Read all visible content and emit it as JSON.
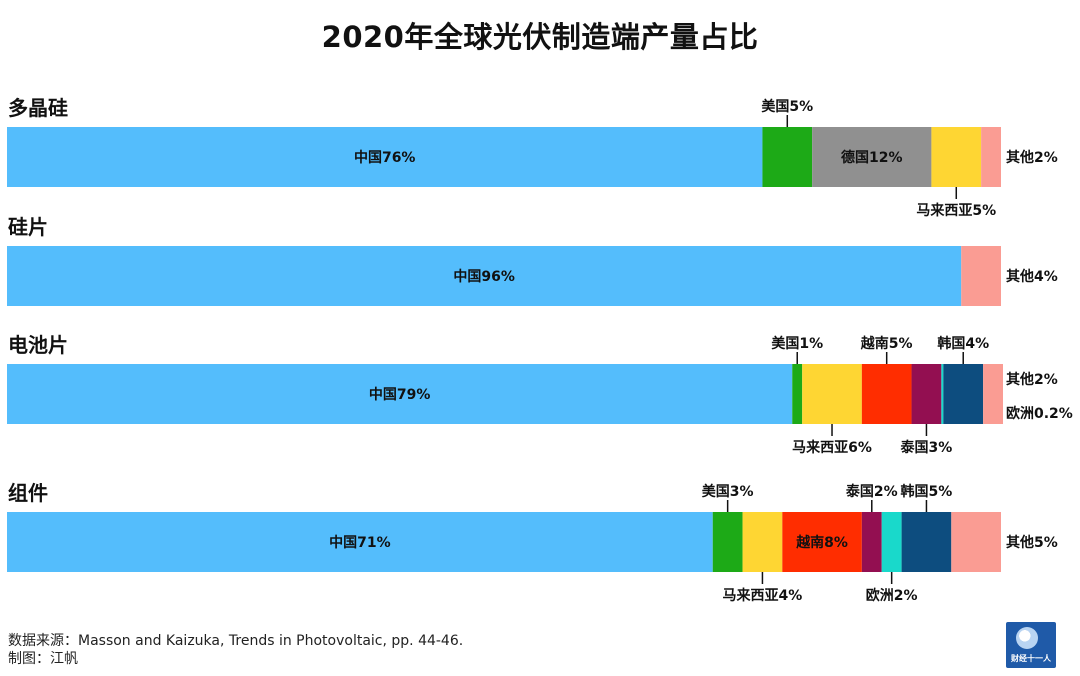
{
  "chart_data": {
    "type": "bar",
    "title": "2020年全球光伏制造端产量占比",
    "stacked": true,
    "orientation": "horizontal",
    "xlim": [
      0,
      100
    ],
    "unit": "%",
    "rows": [
      {
        "name": "多晶硅",
        "segments": [
          {
            "label": "中国76%",
            "value": 76,
            "color": "#54BDFC"
          },
          {
            "label": "美国5%",
            "value": 5,
            "color": "#1DAA17"
          },
          {
            "label": "德国12%",
            "value": 12,
            "color": "#909090"
          },
          {
            "label": "马来西亚5%",
            "value": 5,
            "color": "#FED633"
          },
          {
            "label": "其他2%",
            "value": 2,
            "color": "#FA9C93"
          }
        ]
      },
      {
        "name": "硅片",
        "segments": [
          {
            "label": "中国96%",
            "value": 96,
            "color": "#54BDFC"
          },
          {
            "label": "其他4%",
            "value": 4,
            "color": "#FA9C93"
          }
        ]
      },
      {
        "name": "电池片",
        "segments": [
          {
            "label": "中国79%",
            "value": 79,
            "color": "#54BDFC"
          },
          {
            "label": "美国1%",
            "value": 1,
            "color": "#1DAA17"
          },
          {
            "label": "马来西亚6%",
            "value": 6,
            "color": "#FED633"
          },
          {
            "label": "越南5%",
            "value": 5,
            "color": "#FF2D00"
          },
          {
            "label": "泰国3%",
            "value": 3,
            "color": "#930F51"
          },
          {
            "label": "欧洲0.2%",
            "value": 0.2,
            "color": "#19D9CB"
          },
          {
            "label": "韩国4%",
            "value": 4,
            "color": "#0D4D7F"
          },
          {
            "label": "其他2%",
            "value": 2,
            "color": "#FA9C93"
          }
        ]
      },
      {
        "name": "组件",
        "segments": [
          {
            "label": "中国71%",
            "value": 71,
            "color": "#54BDFC"
          },
          {
            "label": "美国3%",
            "value": 3,
            "color": "#1DAA17"
          },
          {
            "label": "马来西亚4%",
            "value": 4,
            "color": "#FED633"
          },
          {
            "label": "越南8%",
            "value": 8,
            "color": "#FF2D00"
          },
          {
            "label": "泰国2%",
            "value": 2,
            "color": "#930F51"
          },
          {
            "label": "欧洲2%",
            "value": 2,
            "color": "#19D9CB"
          },
          {
            "label": "韩国5%",
            "value": 5,
            "color": "#0D4D7F"
          },
          {
            "label": "其他5%",
            "value": 5,
            "color": "#FA9C93"
          }
        ]
      }
    ]
  },
  "footer": {
    "source": "数据来源：Masson and Kaizuka, Trends in Photovoltaic, pp. 44-46.",
    "author": "制图：江帆"
  },
  "logo": {
    "text": "财经十一人"
  }
}
